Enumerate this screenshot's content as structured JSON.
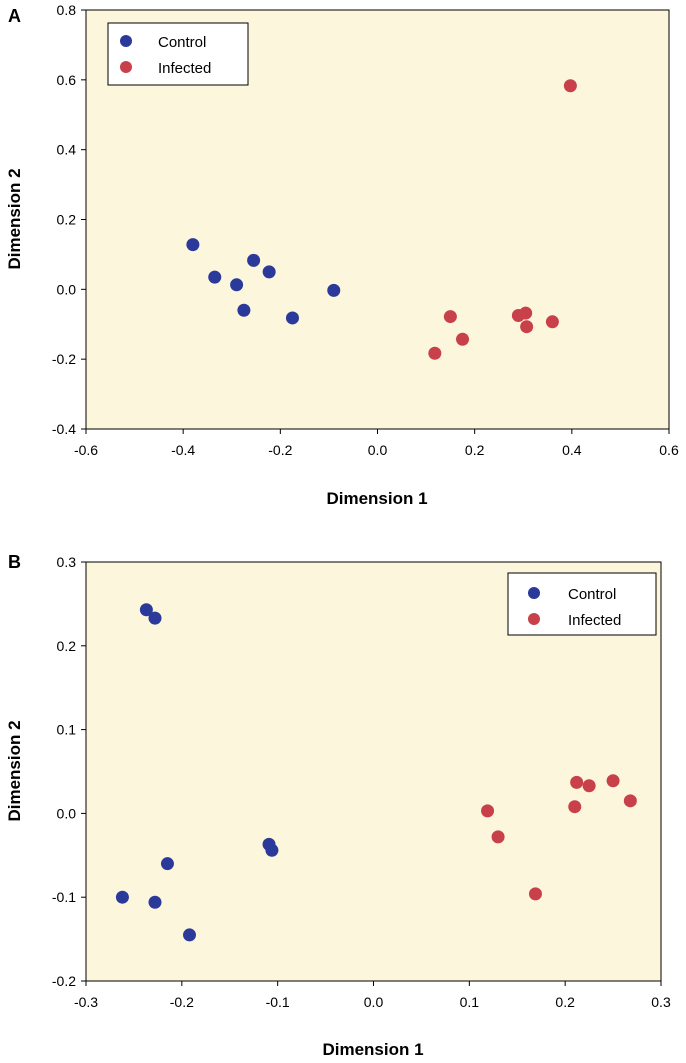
{
  "colors": {
    "plot_background": "#fbf6dc",
    "control": "#2b3a9a",
    "infected": "#c8404a",
    "frame": "#000000"
  },
  "chart_data": [
    {
      "panel_label": "A",
      "type": "scatter",
      "title": "",
      "xlabel": "Dimension 1",
      "ylabel": "Dimension 2",
      "xlim": [
        -0.6,
        0.6
      ],
      "ylim": [
        -0.4,
        0.8
      ],
      "xticks": [
        -0.6,
        -0.4,
        -0.2,
        0.0,
        0.2,
        0.4,
        0.6
      ],
      "yticks": [
        -0.4,
        -0.2,
        0.0,
        0.2,
        0.4,
        0.6,
        0.8
      ],
      "xtick_labels": [
        "-0.6",
        "-0.4",
        "-0.2",
        "0.0",
        "0.2",
        "0.4",
        "0.6"
      ],
      "ytick_labels": [
        "-0.4",
        "-0.2",
        "0.0",
        "0.2",
        "0.4",
        "0.6",
        "0.8"
      ],
      "legend_position": "top-left",
      "series": [
        {
          "name": "Control",
          "color_key": "control",
          "points": [
            [
              -0.38,
              0.128
            ],
            [
              -0.335,
              0.035
            ],
            [
              -0.29,
              0.013
            ],
            [
              -0.275,
              -0.06
            ],
            [
              -0.255,
              0.083
            ],
            [
              -0.223,
              0.05
            ],
            [
              -0.175,
              -0.082
            ],
            [
              -0.09,
              -0.003
            ]
          ]
        },
        {
          "name": "Infected",
          "color_key": "infected",
          "points": [
            [
              0.118,
              -0.183
            ],
            [
              0.15,
              -0.078
            ],
            [
              0.175,
              -0.143
            ],
            [
              0.29,
              -0.075
            ],
            [
              0.305,
              -0.068
            ],
            [
              0.307,
              -0.107
            ],
            [
              0.36,
              -0.093
            ],
            [
              0.397,
              0.583
            ]
          ]
        }
      ]
    },
    {
      "panel_label": "B",
      "type": "scatter",
      "title": "",
      "xlabel": "Dimension 1",
      "ylabel": "Dimension 2",
      "xlim": [
        -0.3,
        0.3
      ],
      "ylim": [
        -0.2,
        0.3
      ],
      "xticks": [
        -0.3,
        -0.2,
        -0.1,
        0.0,
        0.1,
        0.2,
        0.3
      ],
      "yticks": [
        -0.2,
        -0.1,
        0.0,
        0.1,
        0.2,
        0.3
      ],
      "xtick_labels": [
        "-0.3",
        "-0.2",
        "-0.1",
        "0.0",
        "0.1",
        "0.2",
        "0.3"
      ],
      "ytick_labels": [
        "-0.2",
        "-0.1",
        "0.0",
        "0.1",
        "0.2",
        "0.3"
      ],
      "legend_position": "top-right",
      "series": [
        {
          "name": "Control",
          "color_key": "control",
          "points": [
            [
              -0.237,
              0.243
            ],
            [
              -0.228,
              0.233
            ],
            [
              -0.262,
              -0.1
            ],
            [
              -0.228,
              -0.106
            ],
            [
              -0.215,
              -0.06
            ],
            [
              -0.192,
              -0.145
            ],
            [
              -0.109,
              -0.037
            ],
            [
              -0.106,
              -0.044
            ]
          ]
        },
        {
          "name": "Infected",
          "color_key": "infected",
          "points": [
            [
              0.119,
              0.003
            ],
            [
              0.13,
              -0.028
            ],
            [
              0.169,
              -0.096
            ],
            [
              0.21,
              0.008
            ],
            [
              0.212,
              0.037
            ],
            [
              0.225,
              0.033
            ],
            [
              0.25,
              0.039
            ],
            [
              0.268,
              0.015
            ]
          ]
        }
      ]
    }
  ]
}
